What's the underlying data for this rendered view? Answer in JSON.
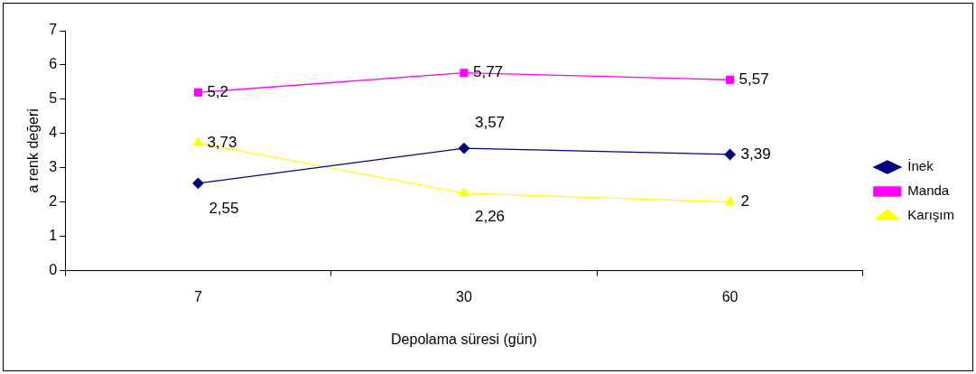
{
  "chart_data": {
    "type": "line",
    "xlabel": "Depolama süresi (gün)",
    "ylabel": "a renk değeri",
    "categories": [
      "7",
      "30",
      "60"
    ],
    "ylim": [
      0,
      7
    ],
    "yticks": [
      0,
      1,
      2,
      3,
      4,
      5,
      6,
      7
    ],
    "grid": false,
    "legend": "right",
    "series": [
      {
        "name": "İnek",
        "color": "#000080",
        "marker": "diamond",
        "values": [
          2.55,
          3.57,
          3.39
        ],
        "value_labels": [
          "2,55",
          "3,57",
          "3,39"
        ]
      },
      {
        "name": "Manda",
        "color": "#ff00ff",
        "marker": "square",
        "values": [
          5.2,
          5.77,
          5.57
        ],
        "value_labels": [
          "5,2",
          "5,77",
          "5,57"
        ]
      },
      {
        "name": "Karışım",
        "color": "#ffff00",
        "marker": "triangle",
        "values": [
          3.73,
          2.26,
          2
        ],
        "value_labels": [
          "3,73",
          "2,26",
          "2"
        ]
      }
    ]
  }
}
